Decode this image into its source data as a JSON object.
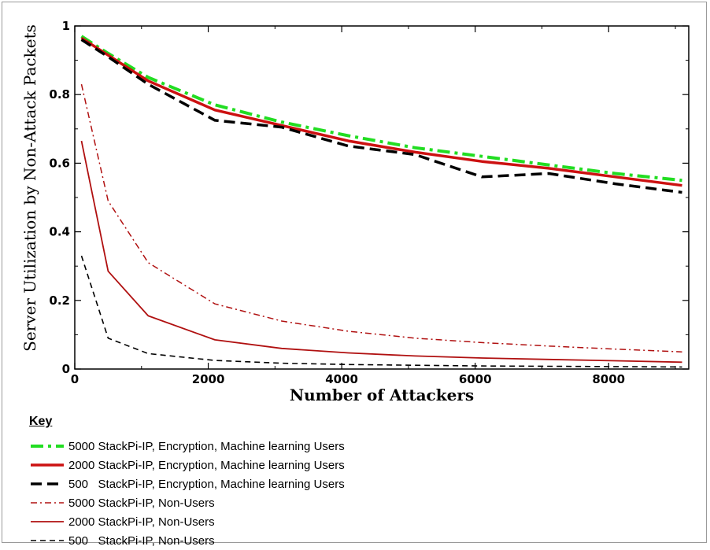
{
  "chart_data": {
    "type": "line",
    "title": "",
    "xlabel": "Number of Attackers",
    "ylabel": "Server Utilization by Non-Attack Packets",
    "xlim": [
      0,
      9200
    ],
    "ylim": [
      0,
      1
    ],
    "xticks": [
      0,
      2000,
      4000,
      6000,
      8000
    ],
    "yticks": [
      0,
      0.2,
      0.4,
      0.6,
      0.8,
      1
    ],
    "xtick_labels": [
      "0",
      "2000",
      "4000",
      "6000",
      "8000"
    ],
    "ytick_labels": [
      "0",
      "0.2",
      "0.4",
      "0.6",
      "0.8",
      "1"
    ],
    "grid": false,
    "legend_title": "Key",
    "legend_placement": "below",
    "series": [
      {
        "name": "5000 StackPi-IP, Encryption, Machine learning Users",
        "color": "#22dd22",
        "style": "dashdot-thick",
        "x": [
          100,
          500,
          1100,
          2100,
          3100,
          4100,
          5100,
          6100,
          7100,
          8100,
          9100
        ],
        "y": [
          0.97,
          0.92,
          0.85,
          0.77,
          0.72,
          0.68,
          0.645,
          0.62,
          0.595,
          0.57,
          0.55
        ]
      },
      {
        "name": "2000 StackPi-IP, Encryption, Machine learning Users",
        "color": "#cc1111",
        "style": "solid-thick",
        "x": [
          100,
          500,
          1100,
          2100,
          3100,
          4100,
          5100,
          6100,
          7100,
          8100,
          9100
        ],
        "y": [
          0.965,
          0.915,
          0.84,
          0.755,
          0.71,
          0.665,
          0.632,
          0.605,
          0.585,
          0.56,
          0.535
        ]
      },
      {
        "name": "500   StackPi-IP, Encryption, Machine learning Users",
        "color": "#000000",
        "style": "dashed-thick",
        "x": [
          100,
          500,
          1100,
          2100,
          3100,
          4100,
          5100,
          6100,
          7100,
          8100,
          9100
        ],
        "y": [
          0.96,
          0.91,
          0.83,
          0.725,
          0.705,
          0.65,
          0.625,
          0.56,
          0.57,
          0.54,
          0.515
        ]
      },
      {
        "name": "5000 StackPi-IP, Non-Users",
        "color": "#b01010",
        "style": "dashdot-thin",
        "x": [
          100,
          500,
          1100,
          2100,
          3100,
          4100,
          5100,
          6100,
          7100,
          8100,
          9100
        ],
        "y": [
          0.83,
          0.49,
          0.31,
          0.19,
          0.14,
          0.11,
          0.09,
          0.077,
          0.067,
          0.058,
          0.05
        ]
      },
      {
        "name": "2000 StackPi-IP, Non-Users",
        "color": "#b01010",
        "style": "solid-thin",
        "x": [
          100,
          500,
          1100,
          2100,
          3100,
          4100,
          5100,
          6100,
          7100,
          8100,
          9100
        ],
        "y": [
          0.665,
          0.285,
          0.155,
          0.085,
          0.06,
          0.047,
          0.038,
          0.032,
          0.028,
          0.024,
          0.02
        ]
      },
      {
        "name": "500   StackPi-IP, Non-Users",
        "color": "#000000",
        "style": "dashed-thin",
        "x": [
          100,
          500,
          1100,
          2100,
          3100,
          4100,
          5100,
          6100,
          7100,
          8100,
          9100
        ],
        "y": [
          0.33,
          0.09,
          0.045,
          0.025,
          0.017,
          0.013,
          0.011,
          0.009,
          0.008,
          0.007,
          0.006
        ]
      }
    ]
  }
}
